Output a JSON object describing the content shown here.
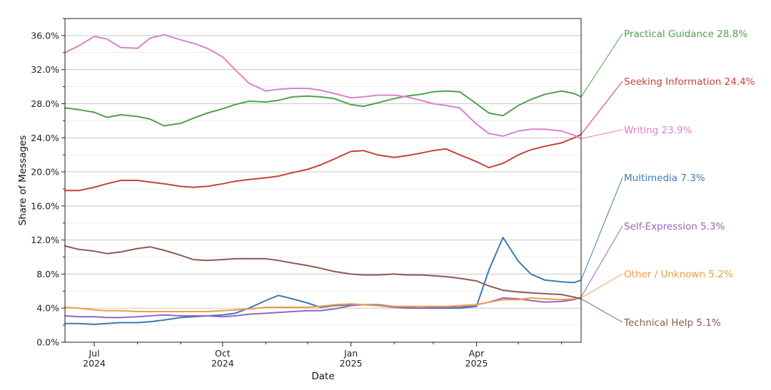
{
  "chart_data": {
    "type": "line",
    "xlabel": "Date",
    "ylabel": "Share of Messages",
    "ylim": [
      0,
      38
    ],
    "y_ticks": [
      "0.0%",
      "4.0%",
      "8.0%",
      "12.0%",
      "16.0%",
      "20.0%",
      "24.0%",
      "28.0%",
      "32.0%",
      "36.0%"
    ],
    "x_ticks": [
      {
        "line1": "Jul",
        "line2": "2024"
      },
      {
        "line1": "Oct",
        "line2": "2024"
      },
      {
        "line1": "Jan",
        "line2": "2025"
      },
      {
        "line1": "Apr",
        "line2": "2025"
      }
    ],
    "x_tick_dates": [
      "2024-07-01",
      "2024-10-01",
      "2025-01-01",
      "2025-04-01"
    ],
    "grid": "horizontal",
    "legend": "direct labels at right end of lines",
    "x_dates": [
      "2024-06-10",
      "2024-06-20",
      "2024-07-01",
      "2024-07-10",
      "2024-07-20",
      "2024-08-01",
      "2024-08-10",
      "2024-08-20",
      "2024-09-01",
      "2024-09-10",
      "2024-09-20",
      "2024-10-01",
      "2024-10-10",
      "2024-10-20",
      "2024-11-01",
      "2024-11-10",
      "2024-11-20",
      "2024-12-01",
      "2024-12-10",
      "2024-12-20",
      "2025-01-01",
      "2025-01-10",
      "2025-01-20",
      "2025-02-01",
      "2025-02-10",
      "2025-02-20",
      "2025-03-01",
      "2025-03-10",
      "2025-03-20",
      "2025-04-01",
      "2025-04-10",
      "2025-04-20",
      "2025-05-01",
      "2025-05-10",
      "2025-05-20",
      "2025-06-01",
      "2025-06-10",
      "2025-06-15"
    ],
    "series": [
      {
        "name": "Practical Guidance",
        "end_label": "Practical Guidance  28.8%",
        "color": "#4ea24a",
        "values": [
          27.5,
          27.3,
          27.0,
          26.4,
          26.7,
          26.5,
          26.2,
          25.4,
          25.7,
          26.3,
          26.9,
          27.4,
          27.9,
          28.3,
          28.2,
          28.4,
          28.8,
          28.9,
          28.8,
          28.6,
          27.9,
          27.7,
          28.1,
          28.6,
          28.9,
          29.1,
          29.4,
          29.5,
          29.4,
          28.0,
          26.9,
          26.6,
          27.8,
          28.5,
          29.1,
          29.5,
          29.2,
          28.8
        ]
      },
      {
        "name": "Seeking Information",
        "end_label": "Seeking Information  24.4%",
        "color": "#c9413b",
        "values": [
          17.8,
          17.8,
          18.2,
          18.6,
          19.0,
          19.0,
          18.8,
          18.6,
          18.3,
          18.2,
          18.3,
          18.6,
          18.9,
          19.1,
          19.3,
          19.5,
          19.9,
          20.3,
          20.8,
          21.5,
          22.4,
          22.5,
          22.0,
          21.7,
          21.9,
          22.2,
          22.5,
          22.7,
          22.0,
          21.2,
          20.5,
          21.0,
          22.0,
          22.6,
          23.0,
          23.4,
          24.0,
          24.4
        ]
      },
      {
        "name": "Writing",
        "end_label": "Writing  23.9%",
        "color": "#dc82c9",
        "values": [
          34.0,
          34.8,
          35.9,
          35.6,
          34.6,
          34.5,
          35.7,
          36.1,
          35.5,
          35.1,
          34.5,
          33.5,
          32.0,
          30.4,
          29.5,
          29.7,
          29.8,
          29.8,
          29.6,
          29.2,
          28.7,
          28.8,
          29.0,
          29.0,
          28.8,
          28.4,
          28.0,
          27.8,
          27.5,
          25.6,
          24.5,
          24.2,
          24.8,
          25.0,
          25.0,
          24.8,
          24.3,
          23.9
        ]
      },
      {
        "name": "Multimedia",
        "end_label": "Multimedia  7.3%",
        "color": "#3b7bb5",
        "values": [
          2.2,
          2.2,
          2.1,
          2.2,
          2.3,
          2.3,
          2.4,
          2.6,
          2.9,
          3.0,
          3.1,
          3.2,
          3.4,
          4.0,
          4.9,
          5.5,
          5.1,
          4.6,
          4.1,
          4.3,
          4.4,
          4.4,
          4.4,
          4.2,
          4.1,
          4.0,
          4.0,
          4.0,
          4.0,
          4.2,
          8.5,
          12.3,
          9.5,
          8.0,
          7.3,
          7.1,
          7.0,
          7.3
        ]
      },
      {
        "name": "Self-Expression",
        "end_label": "Self-Expression  5.3%",
        "color": "#9467bd",
        "values": [
          3.1,
          3.0,
          3.0,
          2.9,
          2.9,
          3.0,
          3.1,
          3.2,
          3.1,
          3.1,
          3.1,
          3.0,
          3.1,
          3.3,
          3.4,
          3.5,
          3.6,
          3.7,
          3.7,
          3.9,
          4.3,
          4.4,
          4.3,
          4.1,
          4.0,
          4.0,
          4.1,
          4.1,
          4.1,
          4.4,
          4.7,
          5.2,
          5.1,
          4.9,
          4.7,
          4.8,
          5.0,
          5.3
        ]
      },
      {
        "name": "Other / Unknown",
        "end_label": "Other / Unknown  5.2%",
        "color": "#ee9b45",
        "values": [
          4.1,
          4.0,
          3.8,
          3.7,
          3.7,
          3.6,
          3.6,
          3.6,
          3.6,
          3.6,
          3.6,
          3.7,
          3.8,
          3.9,
          4.1,
          4.1,
          4.1,
          4.1,
          4.2,
          4.4,
          4.5,
          4.4,
          4.3,
          4.2,
          4.2,
          4.2,
          4.2,
          4.2,
          4.3,
          4.4,
          4.7,
          5.0,
          5.0,
          5.2,
          5.1,
          5.0,
          5.1,
          5.2
        ]
      },
      {
        "name": "Technical Help",
        "end_label": "Technical Help  5.1%",
        "color": "#8c5b50",
        "values": [
          11.3,
          10.9,
          10.7,
          10.4,
          10.6,
          11.0,
          11.2,
          10.8,
          10.2,
          9.7,
          9.6,
          9.7,
          9.8,
          9.8,
          9.8,
          9.6,
          9.3,
          9.0,
          8.7,
          8.3,
          8.0,
          7.9,
          7.9,
          8.0,
          7.9,
          7.9,
          7.8,
          7.7,
          7.5,
          7.2,
          6.6,
          6.1,
          5.9,
          5.8,
          5.7,
          5.6,
          5.3,
          5.1
        ]
      }
    ]
  }
}
